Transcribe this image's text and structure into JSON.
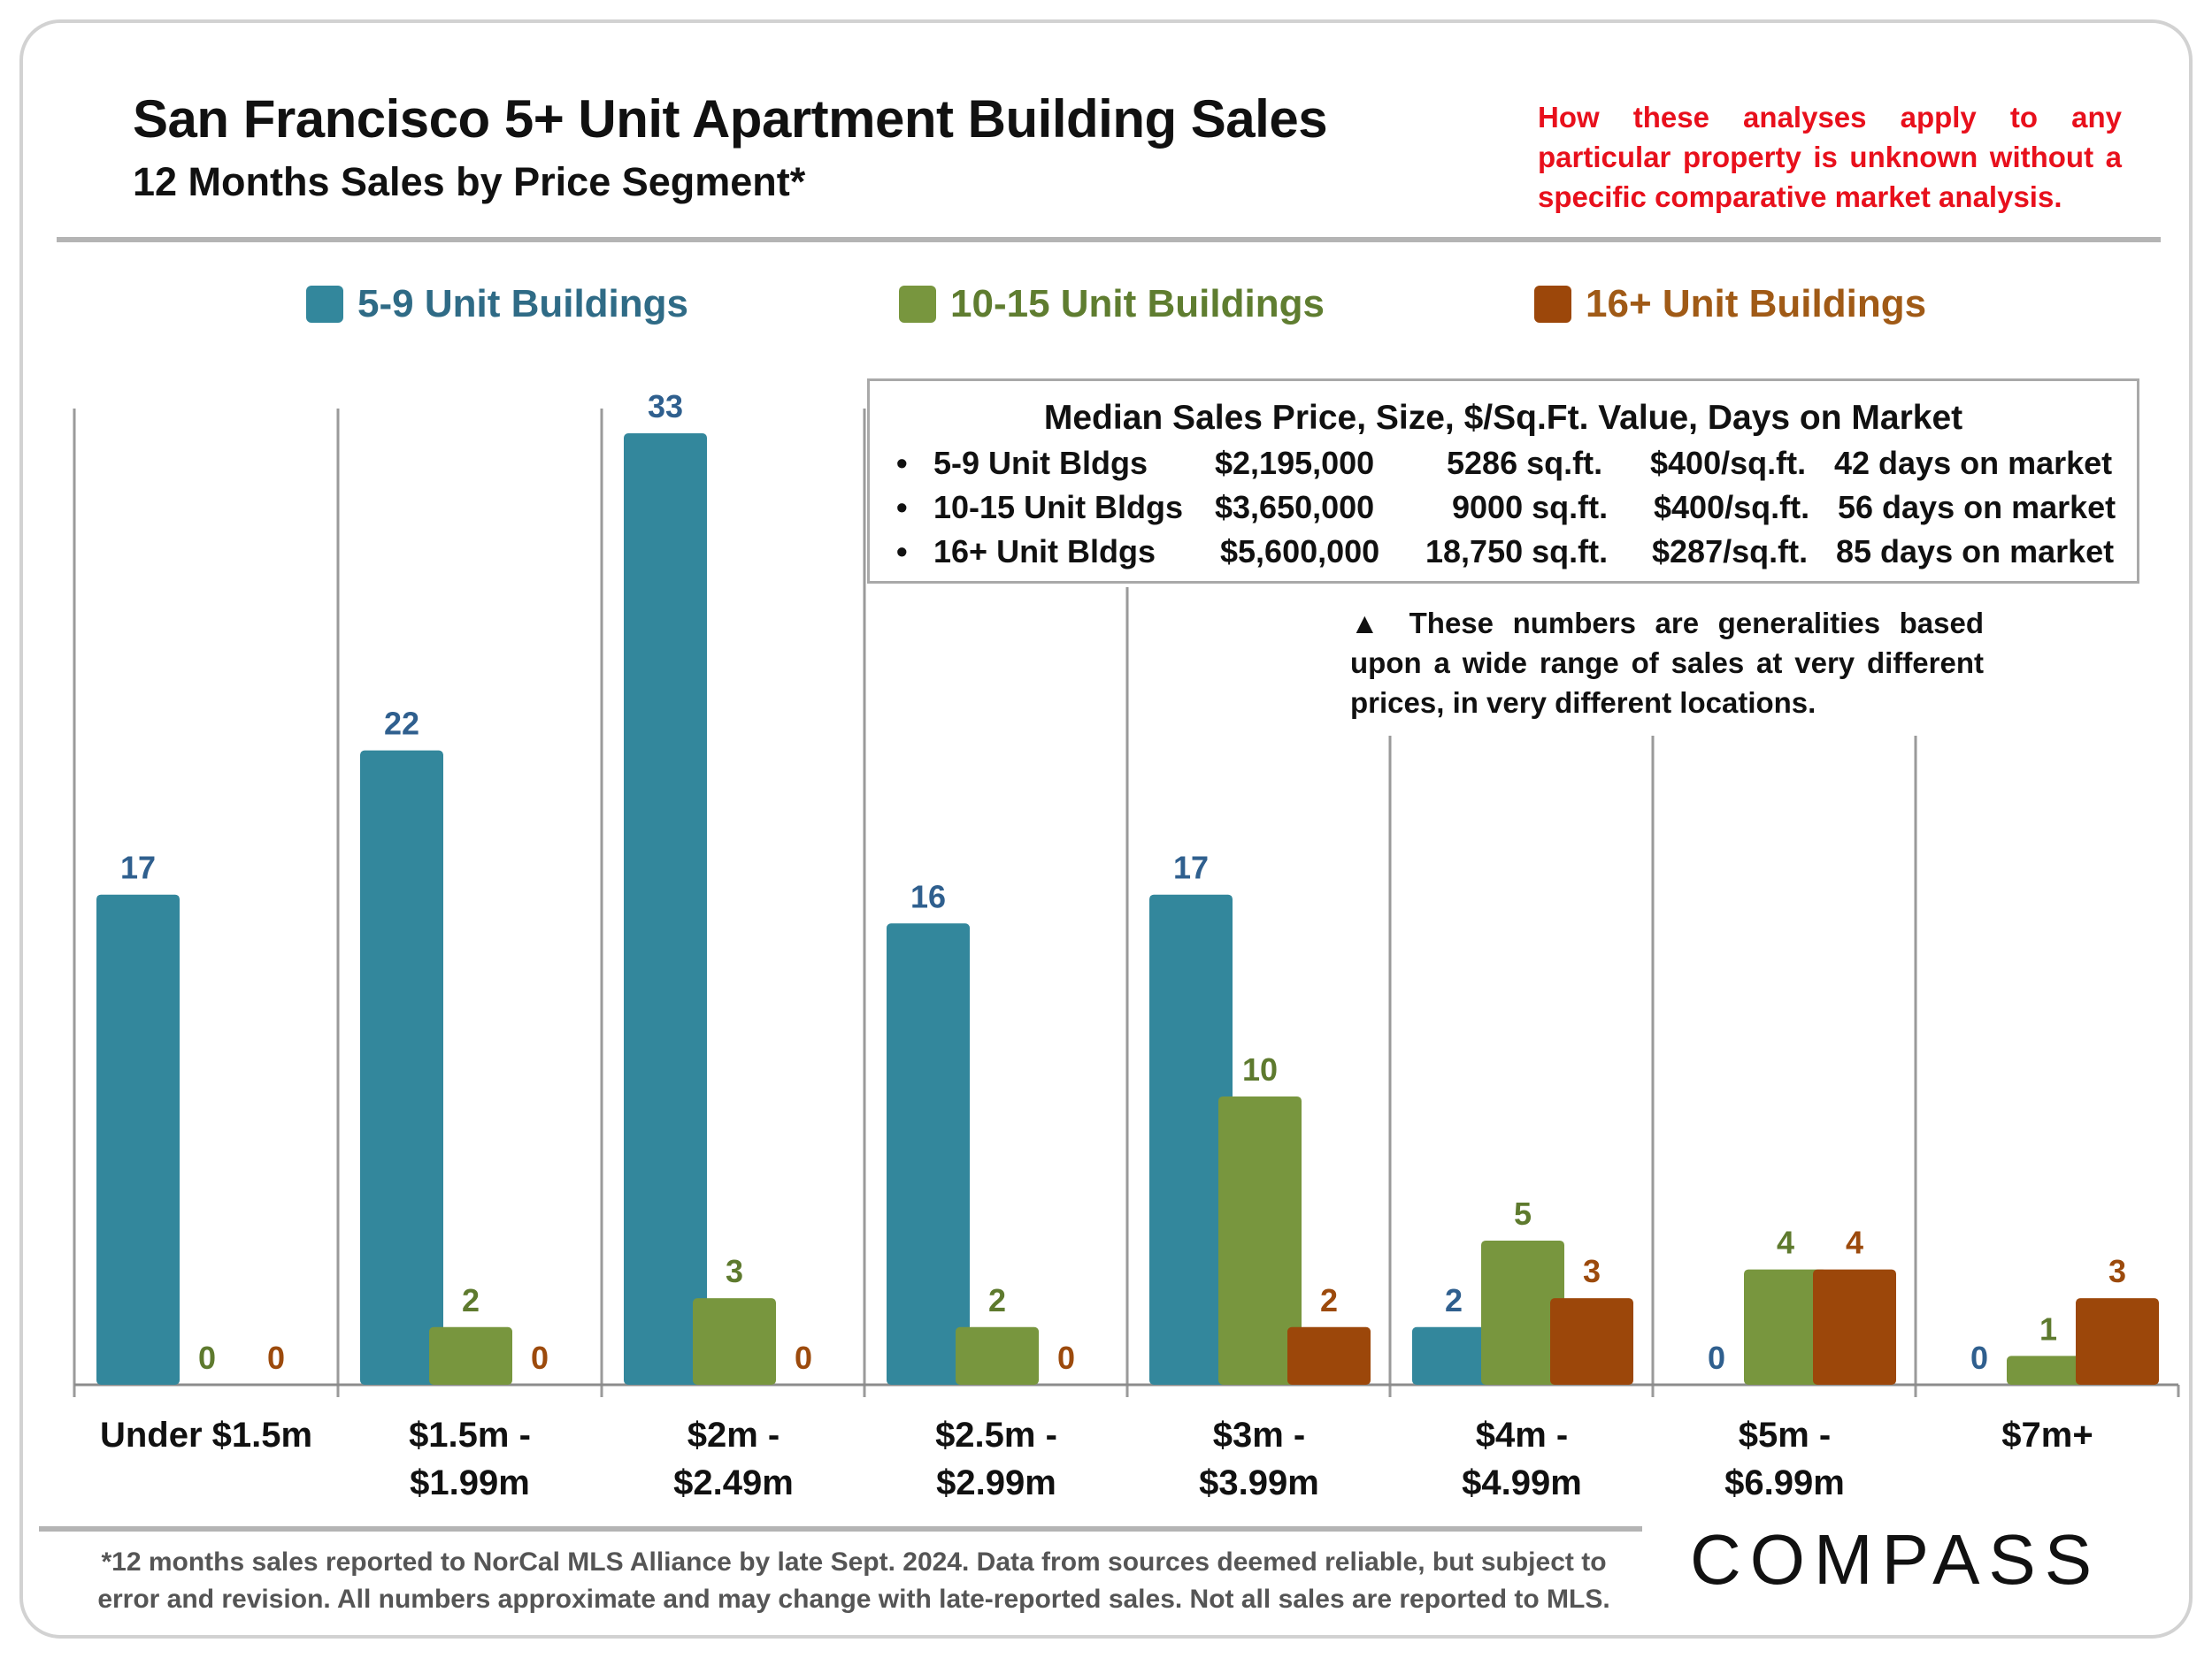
{
  "header": {
    "title": "San Francisco 5+ Unit Apartment Building Sales",
    "subtitle": "12 Months Sales by Price Segment*",
    "disclaimer": "How these analyses apply to any particular property is unknown without a specific comparative market analysis."
  },
  "colors": {
    "series_a": "#33879c",
    "series_b": "#78963e",
    "series_c": "#9c470a",
    "label_a": "#2f5f8e",
    "label_b": "#5e7a2e",
    "label_c": "#9c4a0c"
  },
  "chart_data": {
    "type": "bar",
    "title": "San Francisco 5+ Unit Apartment Building Sales",
    "subtitle": "12 Months Sales by Price Segment*",
    "xlabel": "",
    "ylabel": "",
    "ylim": [
      0,
      33
    ],
    "grid": false,
    "legend_position": "top",
    "categories": [
      [
        "Under $1.5m"
      ],
      [
        "$1.5m -",
        "$1.99m"
      ],
      [
        "$2m -",
        "$2.49m"
      ],
      [
        "$2.5m -",
        "$2.99m"
      ],
      [
        "$3m -",
        "$3.99m"
      ],
      [
        "$4m -",
        "$4.99m"
      ],
      [
        "$5m -",
        "$6.99m"
      ],
      [
        "$7m+"
      ]
    ],
    "series": [
      {
        "name": "5-9 Unit Buildings",
        "values": [
          17,
          22,
          33,
          16,
          17,
          2,
          0,
          0
        ]
      },
      {
        "name": "10-15 Unit Buildings",
        "values": [
          0,
          2,
          3,
          2,
          10,
          5,
          4,
          1
        ]
      },
      {
        "name": "16+ Unit Buildings",
        "values": [
          0,
          0,
          0,
          0,
          2,
          3,
          4,
          3
        ]
      }
    ]
  },
  "median_box": {
    "title": "Median Sales Price, Size, $/Sq.Ft. Value, Days on Market",
    "bullet": "•",
    "rows": [
      {
        "type": "5-9 Unit Bldgs",
        "price": "$2,195,000",
        "size": "5286 sq.ft.",
        "ppsf": "$400/sq.ft.",
        "dom": "42 days on market"
      },
      {
        "type": "10-15 Unit Bldgs",
        "price": "$3,650,000",
        "size": "9000 sq.ft.",
        "ppsf": "$400/sq.ft.",
        "dom": "56 days on market"
      },
      {
        "type": "16+ Unit Bldgs",
        "price": "$5,600,000",
        "size": "18,750 sq.ft.",
        "ppsf": "$287/sq.ft.",
        "dom": "85 days on market"
      }
    ]
  },
  "note": "▲ These numbers are generalities based upon a wide range of sales at very different prices, in very different locations.",
  "footnote": "*12 months sales reported to NorCal MLS Alliance by late Sept. 2024. Data from sources deemed reliable, but subject to error and revision. All numbers approximate and may change with late-reported sales. Not all sales are reported to MLS.",
  "logo": "COMPASS"
}
